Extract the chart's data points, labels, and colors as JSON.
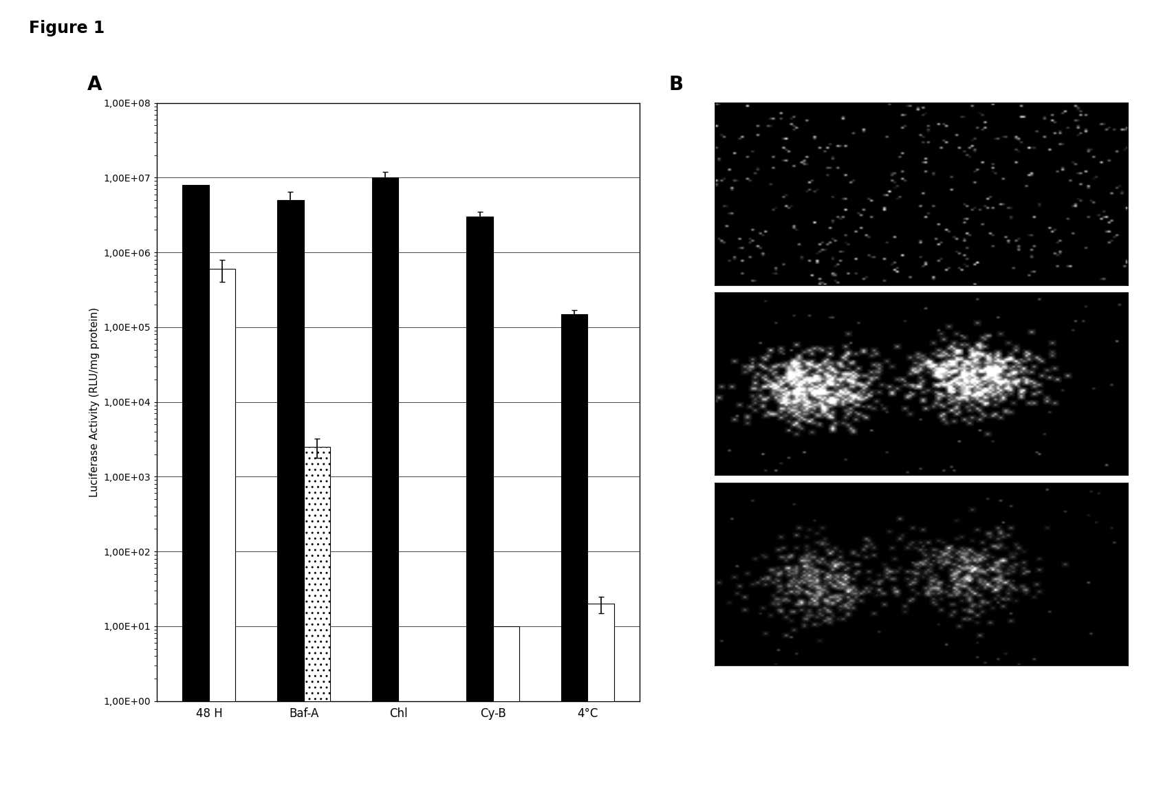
{
  "title_figure": "Figure 1",
  "panel_a_label": "A",
  "panel_b_label": "B",
  "ylabel": "Luciferase Activity (RLU/mg protein)",
  "categories": [
    "48 H",
    "Baf-A",
    "Chl",
    "Cy-B",
    "4°C"
  ],
  "black_bars": [
    8000000.0,
    5000000.0,
    10000000.0,
    3000000.0,
    150000.0
  ],
  "black_bars_err": [
    0,
    1500000.0,
    2000000.0,
    500000.0,
    20000.0
  ],
  "white_bars": [
    600000.0,
    null,
    null,
    10.0,
    20.0
  ],
  "white_bars_err": [
    200000.0,
    null,
    null,
    0,
    5
  ],
  "hatched_bars": [
    null,
    2500.0,
    null,
    null,
    null
  ],
  "hatched_bars_err": [
    null,
    700.0,
    null,
    null,
    null
  ],
  "ymin": 1.0,
  "ymax": 100000000.0,
  "yticks": [
    1.0,
    10.0,
    100.0,
    1000.0,
    10000.0,
    100000.0,
    1000000.0,
    10000000.0,
    100000000.0
  ],
  "ytick_labels": [
    "1,00E+00",
    "1,00E+01",
    "1,00E+02",
    "1,00E+03",
    "1,00E+04",
    "1,00E+05",
    "1,00E+06",
    "1,00E+07",
    "1,00E+08"
  ],
  "bar_width": 0.28,
  "figure_bg": "#ffffff"
}
